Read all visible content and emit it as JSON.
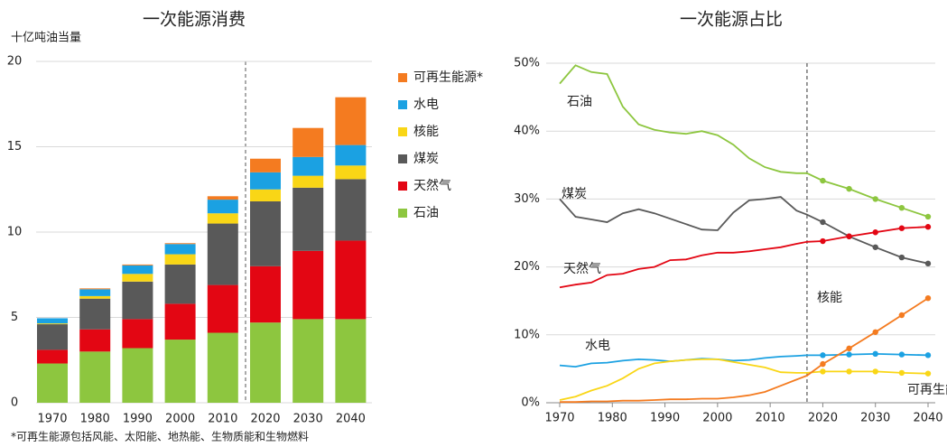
{
  "chart_data": [
    {
      "type": "bar",
      "title": "一次能源消费",
      "y_label": "十亿吨油当量",
      "footnote": "*可再生能源包括风能、太阳能、地热能、生物质能和生物燃料",
      "categories": [
        "1970",
        "1980",
        "1990",
        "2000",
        "2010",
        "2020",
        "2030",
        "2040"
      ],
      "series": [
        {
          "name": "石油",
          "color": "#8dc63f",
          "values": [
            2.3,
            3.0,
            3.2,
            3.7,
            4.1,
            4.7,
            4.9,
            4.9
          ]
        },
        {
          "name": "天然气",
          "color": "#e30613",
          "values": [
            0.8,
            1.3,
            1.7,
            2.1,
            2.8,
            3.3,
            4.0,
            4.6
          ]
        },
        {
          "name": "煤炭",
          "color": "#595959",
          "values": [
            1.5,
            1.8,
            2.2,
            2.3,
            3.6,
            3.8,
            3.7,
            3.6
          ]
        },
        {
          "name": "核能",
          "color": "#f9d616",
          "values": [
            0.05,
            0.15,
            0.45,
            0.6,
            0.6,
            0.7,
            0.7,
            0.8
          ]
        },
        {
          "name": "水电",
          "color": "#1ba1e2",
          "values": [
            0.3,
            0.4,
            0.5,
            0.6,
            0.8,
            1.0,
            1.1,
            1.2
          ]
        },
        {
          "name": "可再生能源*",
          "color": "#f47b20",
          "values": [
            0.0,
            0.05,
            0.05,
            0.05,
            0.2,
            0.8,
            1.7,
            2.8
          ]
        }
      ],
      "stacked": true,
      "ylim": [
        0,
        20
      ],
      "yticks": [
        0,
        5,
        10,
        15,
        20
      ],
      "grid": true
    },
    {
      "type": "line",
      "title": "一次能源占比",
      "x": [
        1970,
        1973,
        1976,
        1979,
        1982,
        1985,
        1988,
        1991,
        1994,
        1997,
        2000,
        2003,
        2006,
        2009,
        2012,
        2015,
        2017,
        2020,
        2025,
        2030,
        2035,
        2040
      ],
      "series": [
        {
          "name": "石油",
          "color": "#8dc63f",
          "values": [
            47,
            49.7,
            48.7,
            48.4,
            43.6,
            41,
            40.2,
            39.8,
            39.6,
            40,
            39.4,
            38,
            36,
            34.7,
            34,
            33.8,
            33.8,
            32.7,
            31.5,
            30,
            28.7,
            27.4
          ]
        },
        {
          "name": "煤炭",
          "color": "#595959",
          "values": [
            30,
            27.4,
            27,
            26.6,
            27.9,
            28.5,
            27.9,
            27.1,
            26.3,
            25.5,
            25.4,
            28,
            29.8,
            30,
            30.3,
            28.3,
            27.7,
            26.6,
            24.5,
            22.9,
            21.4,
            20.5
          ]
        },
        {
          "name": "天然气",
          "color": "#e30613",
          "values": [
            17,
            17.4,
            17.7,
            18.8,
            19,
            19.7,
            20,
            21,
            21.1,
            21.7,
            22.1,
            22.1,
            22.3,
            22.6,
            22.9,
            23.4,
            23.7,
            23.8,
            24.5,
            25.1,
            25.7,
            25.9
          ]
        },
        {
          "name": "水电",
          "color": "#1ba1e2",
          "values": [
            5.5,
            5.3,
            5.8,
            5.9,
            6.2,
            6.4,
            6.3,
            6.1,
            6.3,
            6.5,
            6.4,
            6.2,
            6.3,
            6.6,
            6.8,
            6.9,
            7.0,
            7.0,
            7.1,
            7.2,
            7.1,
            7.0
          ]
        },
        {
          "name": "核能",
          "color": "#f9d616",
          "values": [
            0.4,
            0.9,
            1.8,
            2.5,
            3.6,
            5.0,
            5.8,
            6.1,
            6.3,
            6.4,
            6.4,
            6.0,
            5.6,
            5.2,
            4.5,
            4.4,
            4.4,
            4.6,
            4.6,
            4.6,
            4.4,
            4.3
          ]
        },
        {
          "name": "可再生能源",
          "color": "#f47b20",
          "values": [
            0.1,
            0.1,
            0.2,
            0.2,
            0.3,
            0.3,
            0.4,
            0.5,
            0.5,
            0.6,
            0.6,
            0.8,
            1.1,
            1.6,
            2.5,
            3.4,
            4.0,
            5.7,
            8.0,
            10.4,
            12.9,
            15.4
          ]
        }
      ],
      "xlim": [
        1970,
        2040
      ],
      "xticks": [
        1970,
        1980,
        1990,
        2000,
        2010,
        2020,
        2030,
        2040
      ],
      "ylim": [
        0,
        50
      ],
      "yticks": [
        {
          "value": 0,
          "label": "0%"
        },
        {
          "value": 10,
          "label": "10%"
        },
        {
          "value": 20,
          "label": "20%"
        },
        {
          "value": 30,
          "label": "30%"
        },
        {
          "value": 40,
          "label": "40%"
        },
        {
          "value": 50,
          "label": "50%"
        }
      ],
      "vline": 2017,
      "grid": true
    }
  ]
}
